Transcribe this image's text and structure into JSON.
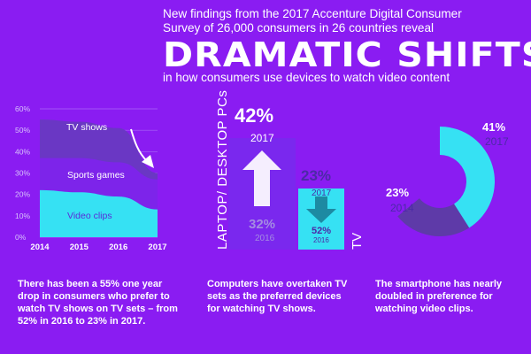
{
  "header": {
    "line1": "New findings from the 2017 Accenture Digital Consumer",
    "line2": "Survey of 26,000 consumers in 26 countries reveal",
    "big_title": "DRAMATIC SHIFTS",
    "subtitle": "in how consumers use devices to watch video content"
  },
  "captions": {
    "left": "There has been a 55% one year drop in consumers who prefer to watch TV shows on TV sets – from 52% in 2016 to 23% in 2017.",
    "middle": "Computers have overtaken TV sets as the preferred devices for watching TV shows.",
    "right": "The smartphone has nearly doubled in preference for watching video clips."
  },
  "colors": {
    "background": "#8a1cf2",
    "area_tv": "#6a37c4",
    "area_sports": "#7d24ea",
    "area_video": "#36e1f3",
    "bar_laptop": "#7a28ee",
    "bar_tv": "#36e1f3",
    "arrow_up": "#ffffff",
    "arrow_down": "#1d8aa2",
    "donut_2017": "#36e1f3",
    "donut_2014": "#5e3aa8"
  },
  "chart_data": [
    {
      "type": "area",
      "x": [
        "2014",
        "2015",
        "2016",
        "2017"
      ],
      "ylim": [
        0,
        60
      ],
      "y_ticks": [
        "0%",
        "10%",
        "20%",
        "30%",
        "40%",
        "50%",
        "60%"
      ],
      "stacked": true,
      "series": [
        {
          "name": "Video clips",
          "values": [
            22,
            21,
            19,
            13
          ]
        },
        {
          "name": "Sports games",
          "values": [
            15,
            16,
            16,
            14
          ]
        },
        {
          "name": "TV shows",
          "values": [
            18,
            17,
            16,
            3
          ]
        }
      ],
      "annotation": "downward arrow indicating decline"
    },
    {
      "type": "bar",
      "categories": [
        "LAPTOP/ DESKTOP PCs",
        "TV"
      ],
      "series": [
        {
          "name": "2017",
          "values": [
            42,
            23
          ]
        },
        {
          "name": "2016",
          "values": [
            32,
            52
          ]
        }
      ],
      "labels": {
        "laptop_2017": "42%",
        "laptop_2017_year": "2017",
        "laptop_2016": "32%",
        "laptop_2016_year": "2016",
        "tv_2017": "23%",
        "tv_2017_year": "2017",
        "tv_2016": "52%",
        "tv_2016_year": "2016"
      }
    },
    {
      "type": "pie",
      "series": [
        {
          "name": "2017",
          "value": 41
        },
        {
          "name": "2014",
          "value": 23
        }
      ],
      "labels": {
        "v2017": "41%",
        "y2017": "2017",
        "v2014": "23%",
        "y2014": "2014"
      }
    }
  ]
}
